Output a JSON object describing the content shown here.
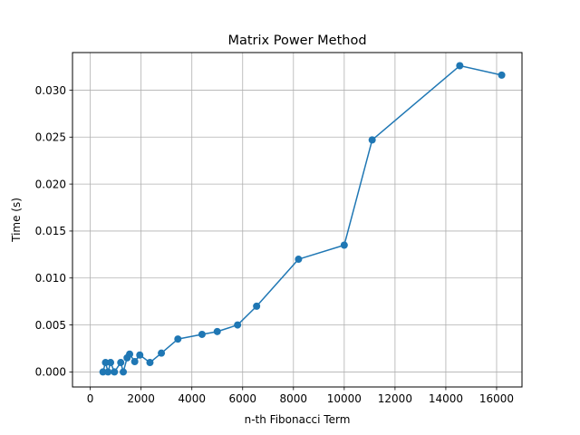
{
  "chart_data": {
    "type": "line",
    "title": "Matrix Power Method",
    "xlabel": "n-th Fibonacci Term",
    "ylabel": "Time (s)",
    "xlim": [
      -700,
      17000
    ],
    "ylim": [
      -0.0016,
      0.034
    ],
    "grid": true,
    "line_color": "#1f77b4",
    "xticks": [
      0,
      2000,
      4000,
      6000,
      8000,
      10000,
      12000,
      14000,
      16000
    ],
    "xtick_labels": [
      "0",
      "2000",
      "4000",
      "6000",
      "8000",
      "10000",
      "12000",
      "14000",
      "16000"
    ],
    "yticks": [
      0.0,
      0.005,
      0.01,
      0.015,
      0.02,
      0.025,
      0.03
    ],
    "ytick_labels": [
      "0.000",
      "0.005",
      "0.010",
      "0.015",
      "0.020",
      "0.025",
      "0.030"
    ],
    "series": [
      {
        "x": [
          500,
          600,
          700,
          800,
          950,
          1200,
          1300,
          1450,
          1550,
          1750,
          1950,
          2350,
          2800,
          3450,
          4400,
          5000,
          5800,
          6550,
          8200,
          10000,
          11100,
          14550,
          16200
        ],
        "y": [
          0.0,
          0.001,
          0.0,
          0.001,
          0.0,
          0.001,
          0.0,
          0.0015,
          0.0019,
          0.0011,
          0.0018,
          0.001,
          0.002,
          0.0035,
          0.004,
          0.0043,
          0.005,
          0.007,
          0.012,
          0.0135,
          0.0247,
          0.0326,
          0.0316
        ]
      }
    ]
  }
}
